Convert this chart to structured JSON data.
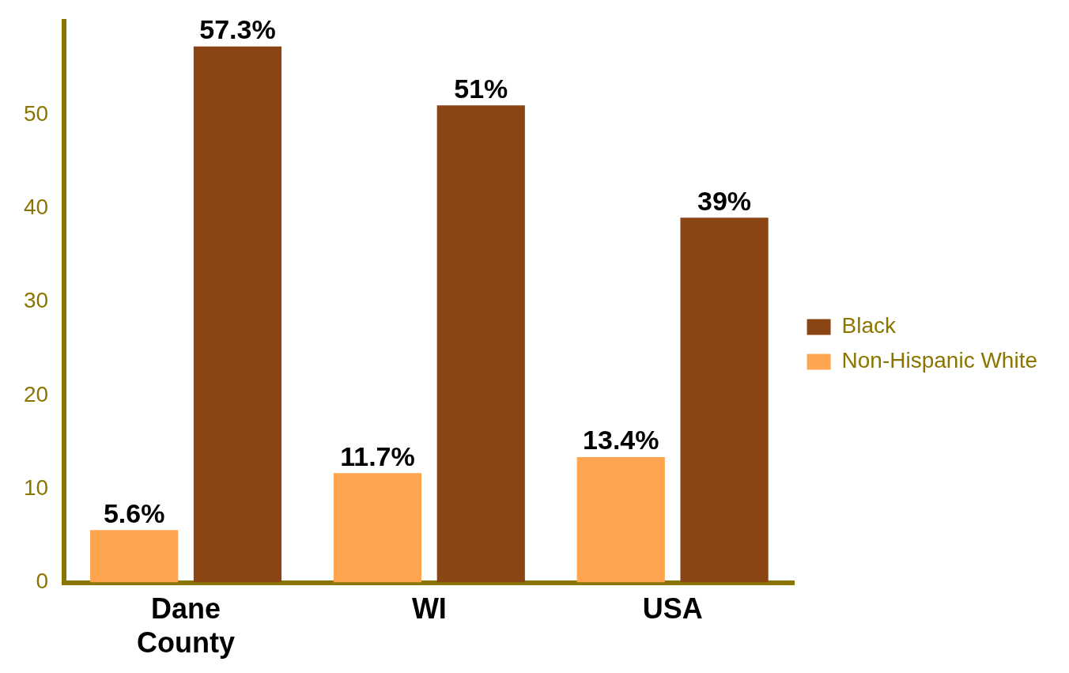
{
  "chart_data": {
    "type": "bar",
    "categories": [
      "Dane County",
      "WI",
      "USA"
    ],
    "series": [
      {
        "name": "Non-Hispanic White",
        "color": "#ffa54f",
        "values": [
          5.6,
          11.7,
          13.4
        ],
        "value_labels": [
          "5.6%",
          "11.7%",
          "13.4%"
        ]
      },
      {
        "name": "Black",
        "color": "#8b4513",
        "values": [
          57.3,
          51,
          39
        ],
        "value_labels": [
          "57.3%",
          "51%",
          "39%"
        ]
      }
    ],
    "ylim": [
      0,
      60
    ],
    "yticks": [
      0,
      10,
      20,
      30,
      40,
      50
    ],
    "grid": false,
    "legend": "right"
  }
}
